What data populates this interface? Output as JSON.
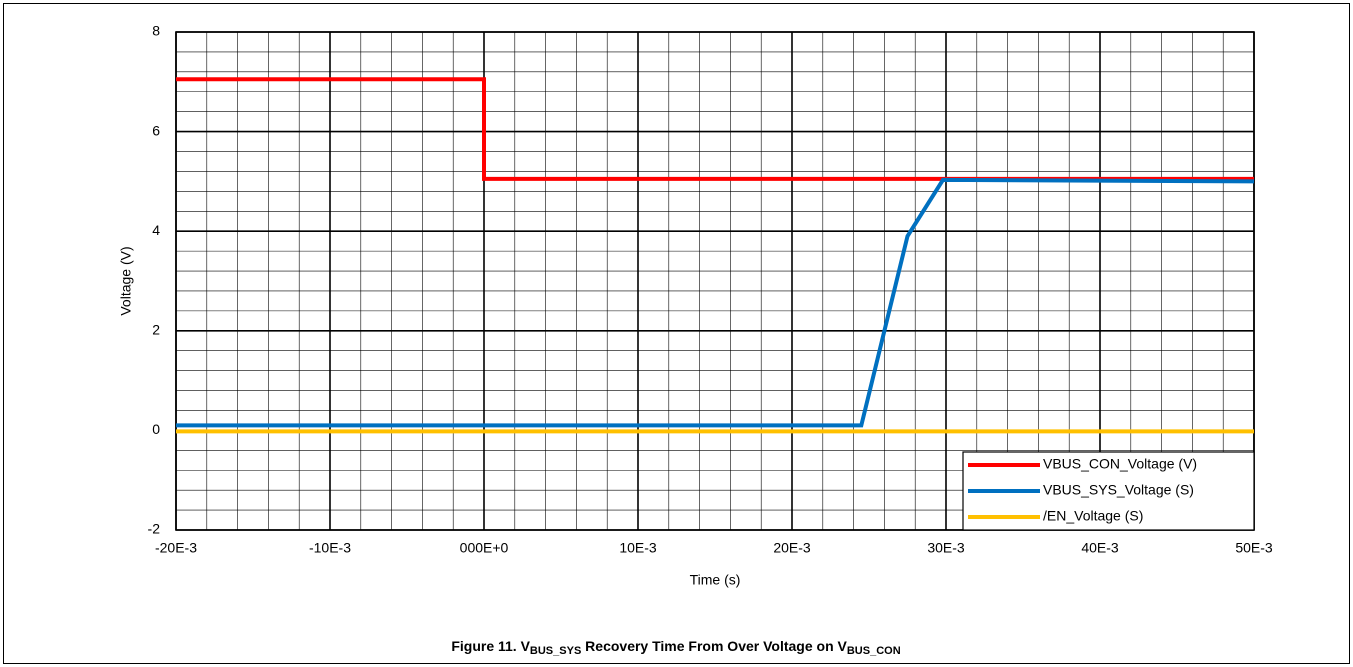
{
  "chart_data": {
    "type": "line",
    "x_label": "Time (s)",
    "y_label": "Voltage (V)",
    "caption": {
      "prefix": "Figure 11. V",
      "sub1": "BUS_SYS",
      "middle": " Recovery Time From Over Voltage on V",
      "sub2": "BUS_CON"
    },
    "xlim": [
      -0.02,
      0.05
    ],
    "xticks": [
      {
        "value": -0.02,
        "label": "-20E-3"
      },
      {
        "value": -0.01,
        "label": "-10E-3"
      },
      {
        "value": 0,
        "label": "000E+0"
      },
      {
        "value": 0.01,
        "label": "10E-3"
      },
      {
        "value": 0.02,
        "label": "20E-3"
      },
      {
        "value": 0.03,
        "label": "30E-3"
      },
      {
        "value": 0.04,
        "label": "40E-3"
      },
      {
        "value": 0.05,
        "label": "50E-3"
      }
    ],
    "ylim": [
      -2,
      8
    ],
    "yticks": [
      -2,
      0,
      2,
      4,
      6,
      8
    ],
    "grid": true,
    "minor_grid": true,
    "legend": "lower right",
    "series": [
      {
        "name": "VBUS_CON_Voltage (V)",
        "color": "#ff0000",
        "x": [
          -0.02,
          0,
          0,
          0.05
        ],
        "values": [
          7.05,
          7.05,
          5.05,
          5.05
        ]
      },
      {
        "name": "VBUS_SYS_Voltage (S)",
        "color": "#0070c0",
        "x": [
          -0.02,
          0.0245,
          0.0275,
          0.0298,
          0.05
        ],
        "values": [
          0.1,
          0.1,
          3.9,
          5.03,
          5.0
        ]
      },
      {
        "name": "/EN_Voltage (S)",
        "color": "#ffc000",
        "x": [
          -0.02,
          0.05
        ],
        "values": [
          -0.02,
          -0.02
        ]
      }
    ]
  }
}
